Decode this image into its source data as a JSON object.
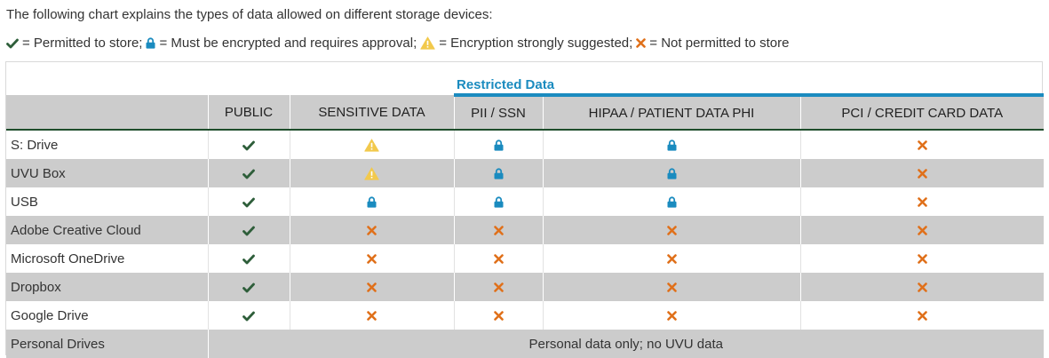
{
  "intro": "The following chart explains the types of data allowed on different storage devices:",
  "legend": [
    {
      "icon": "check-icon",
      "text": "= Permitted to store;"
    },
    {
      "icon": "lock-icon",
      "text": "= Must be encrypted and requires approval;"
    },
    {
      "icon": "warning-icon",
      "text": "= Encryption strongly suggested;"
    },
    {
      "icon": "x-icon",
      "text": "= Not permitted to store"
    }
  ],
  "colors": {
    "check": "#2e5e3a",
    "lock": "#1a8bbf",
    "warning": "#f2c94c",
    "x": "#e0701a",
    "header_bg": "#cccccc",
    "accent": "#1a8bbf"
  },
  "table": {
    "group_label": "Restricted Data",
    "headers": [
      "",
      "PUBLIC",
      "SENSITIVE DATA",
      "PII / SSN",
      "HIPAA / PATIENT DATA PHI",
      "PCI / CREDIT CARD DATA"
    ],
    "rows": [
      {
        "label": "S: Drive",
        "cells": [
          "check",
          "warning",
          "lock",
          "lock",
          "x"
        ]
      },
      {
        "label": "UVU Box",
        "cells": [
          "check",
          "warning",
          "lock",
          "lock",
          "x"
        ]
      },
      {
        "label": "USB",
        "cells": [
          "check",
          "lock",
          "lock",
          "lock",
          "x"
        ]
      },
      {
        "label": "Adobe Creative Cloud",
        "cells": [
          "check",
          "x",
          "x",
          "x",
          "x"
        ]
      },
      {
        "label": "Microsoft OneDrive",
        "cells": [
          "check",
          "x",
          "x",
          "x",
          "x"
        ]
      },
      {
        "label": "Dropbox",
        "cells": [
          "check",
          "x",
          "x",
          "x",
          "x"
        ]
      },
      {
        "label": "Google Drive",
        "cells": [
          "check",
          "x",
          "x",
          "x",
          "x"
        ]
      }
    ],
    "last_row": {
      "label": "Personal Drives",
      "note": "Personal data only; no UVU data"
    }
  }
}
